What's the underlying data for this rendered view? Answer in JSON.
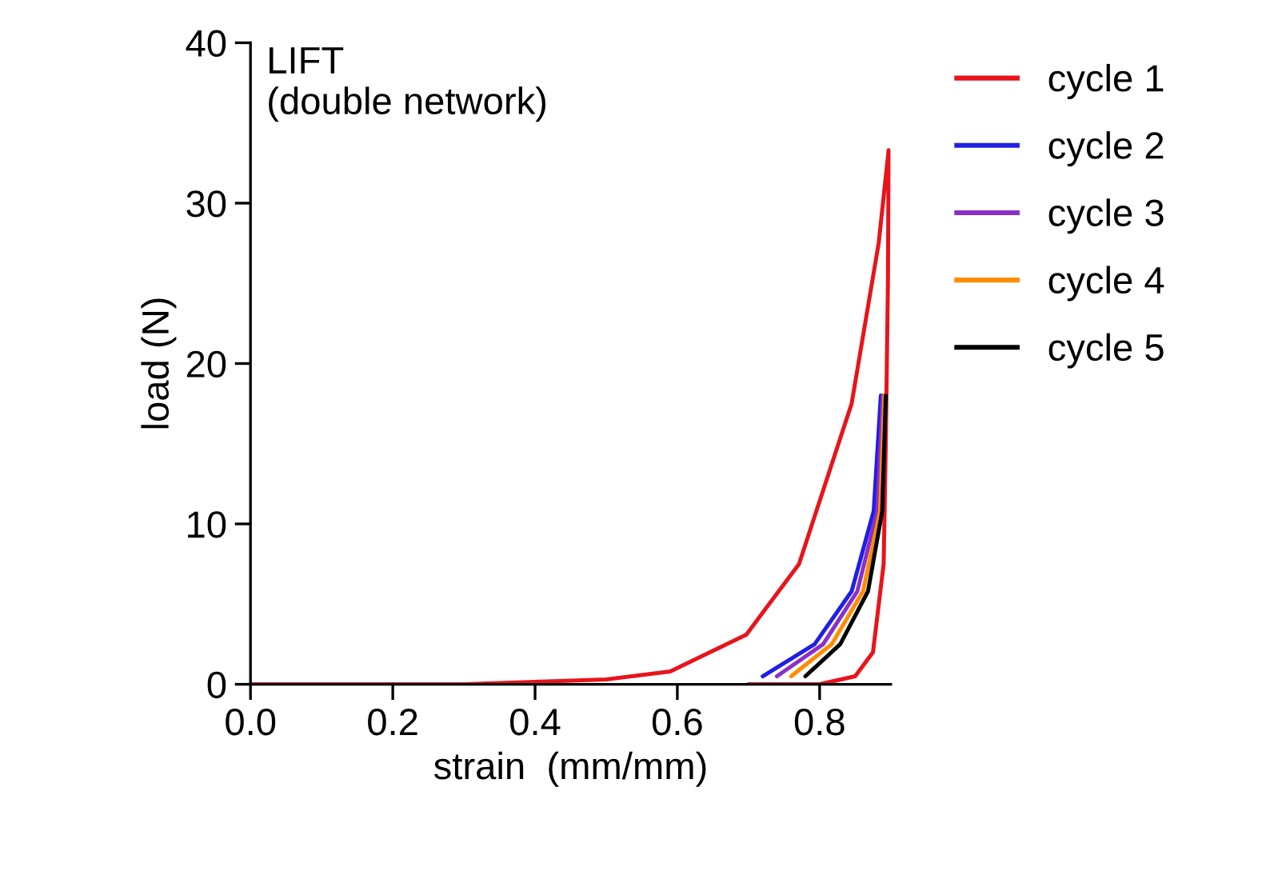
{
  "chart_data": {
    "type": "line",
    "xlabel": "strain  (mm/mm)",
    "ylabel": "load (N)",
    "annotations": [
      "LIFT\n(double network)"
    ],
    "xlim": [
      0,
      0.9
    ],
    "ylim": [
      0,
      40
    ],
    "xticks": [
      {
        "value": 0,
        "label": "0.0"
      },
      {
        "value": 0.2,
        "label": "0.2"
      },
      {
        "value": 0.4,
        "label": "0.4"
      },
      {
        "value": 0.6,
        "label": "0.6"
      },
      {
        "value": 0.8,
        "label": "0.8"
      }
    ],
    "yticks": [
      0,
      10,
      20,
      30,
      40
    ],
    "grid": false,
    "legend": "right",
    "marker": "none",
    "line_style": "solid",
    "series": [
      {
        "name": "cycle 1",
        "color": "#e8141c",
        "x": [
          0,
          0.3,
          0.5,
          0.59,
          0.697,
          0.771,
          0.845,
          0.883,
          0.897,
          0.896,
          0.893,
          0.89,
          0.875,
          0.85,
          0.8,
          0.7
        ],
        "values": [
          0,
          0,
          0.3,
          0.8,
          3.1,
          7.5,
          17.5,
          27.5,
          33.3,
          25,
          15,
          7.5,
          2,
          0.5,
          0,
          0
        ]
      },
      {
        "name": "cycle 2",
        "color": "#1f1fe6",
        "x": [
          0.72,
          0.793,
          0.845,
          0.876,
          0.886
        ],
        "values": [
          0.5,
          2.5,
          5.8,
          10.8,
          18
        ]
      },
      {
        "name": "cycle 3",
        "color": "#8b2fc9",
        "x": [
          0.74,
          0.805,
          0.853,
          0.881,
          0.889
        ],
        "values": [
          0.5,
          2.5,
          5.8,
          10.8,
          18
        ]
      },
      {
        "name": "cycle 4",
        "color": "#ff8c00",
        "x": [
          0.76,
          0.817,
          0.861,
          0.885,
          0.891
        ],
        "values": [
          0.5,
          2.5,
          5.8,
          10.8,
          18
        ]
      },
      {
        "name": "cycle 5",
        "color": "#000000",
        "x": [
          0.78,
          0.829,
          0.868,
          0.888,
          0.893
        ],
        "values": [
          0.5,
          2.5,
          5.8,
          10.8,
          18
        ]
      }
    ]
  }
}
